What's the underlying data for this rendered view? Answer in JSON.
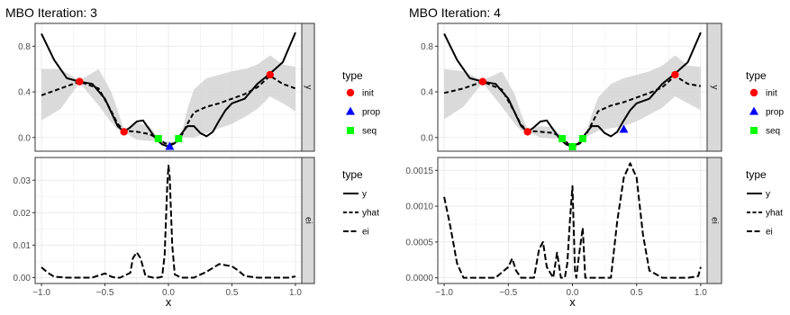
{
  "colors": {
    "panel_bg": "#ffffff",
    "grid": "#ebebeb",
    "strip_bg": "#d9d9d9",
    "ribbon": "#d3d3d3",
    "line": "#000000",
    "init": "#ff0000",
    "prop": "#0000ff",
    "seq": "#00ff00",
    "text": "#000000",
    "tick_text": "#4d4d4d"
  },
  "chart_data": [
    {
      "type": "line",
      "title": "MBO Iteration: 3",
      "xlabel": "x",
      "xlim": [
        -1.05,
        1.05
      ],
      "x_ticks": [
        -1.0,
        -0.5,
        0.0,
        0.5,
        1.0
      ],
      "x_tick_labels": [
        "−1.0",
        "−0.5",
        "0.0",
        "0.5",
        "1.0"
      ],
      "grid": true,
      "legend_position": "right",
      "facets": [
        {
          "strip_label": "y",
          "ylim": [
            -0.12,
            1.0
          ],
          "y_ticks": [
            0.0,
            0.4,
            0.8
          ],
          "y_tick_labels": [
            "0.0",
            "0.4",
            "0.8"
          ],
          "series": [
            {
              "name": "y",
              "style": "solid",
              "x": [
                -1.0,
                -0.9,
                -0.8,
                -0.7,
                -0.6,
                -0.5,
                -0.4,
                -0.35,
                -0.3,
                -0.25,
                -0.2,
                -0.15,
                -0.1,
                -0.05,
                0.0,
                0.05,
                0.1,
                0.15,
                0.2,
                0.25,
                0.3,
                0.35,
                0.4,
                0.45,
                0.5,
                0.6,
                0.7,
                0.8,
                0.9,
                1.0
              ],
              "y": [
                0.91,
                0.68,
                0.52,
                0.49,
                0.47,
                0.34,
                0.1,
                0.05,
                0.09,
                0.14,
                0.15,
                0.07,
                -0.01,
                -0.06,
                -0.08,
                -0.05,
                0.03,
                0.1,
                0.1,
                0.04,
                0.01,
                0.05,
                0.15,
                0.24,
                0.3,
                0.34,
                0.47,
                0.56,
                0.66,
                0.92
              ]
            },
            {
              "name": "yhat",
              "style": "dashed",
              "x": [
                -1.0,
                -0.85,
                -0.7,
                -0.55,
                -0.45,
                -0.4,
                -0.35,
                -0.25,
                -0.15,
                -0.08,
                -0.03,
                0.02,
                0.06,
                0.1,
                0.15,
                0.2,
                0.3,
                0.4,
                0.5,
                0.6,
                0.7,
                0.8,
                0.9,
                1.0
              ],
              "y": [
                0.37,
                0.43,
                0.49,
                0.43,
                0.23,
                0.12,
                0.06,
                0.05,
                0.03,
                -0.01,
                -0.05,
                -0.06,
                -0.04,
                0.01,
                0.12,
                0.22,
                0.27,
                0.3,
                0.34,
                0.38,
                0.44,
                0.54,
                0.47,
                0.43
              ]
            },
            {
              "name": "ribbon",
              "style": "band",
              "x": [
                -1.0,
                -0.85,
                -0.7,
                -0.55,
                -0.45,
                -0.4,
                -0.35,
                -0.25,
                -0.15,
                -0.08,
                -0.03,
                0.02,
                0.06,
                0.1,
                0.15,
                0.2,
                0.3,
                0.4,
                0.5,
                0.6,
                0.7,
                0.8,
                0.9,
                1.0
              ],
              "lower": [
                0.15,
                0.25,
                0.48,
                0.28,
                0.13,
                0.07,
                0.05,
                -0.02,
                -0.03,
                -0.02,
                -0.07,
                -0.08,
                -0.05,
                0.0,
                0.0,
                0.0,
                0.04,
                0.08,
                0.12,
                0.18,
                0.25,
                0.36,
                0.3,
                0.23
              ],
              "upper": [
                0.6,
                0.6,
                0.5,
                0.6,
                0.4,
                0.24,
                0.07,
                0.13,
                0.1,
                0.0,
                -0.03,
                -0.04,
                -0.03,
                0.02,
                0.25,
                0.42,
                0.52,
                0.55,
                0.58,
                0.6,
                0.64,
                0.72,
                0.64,
                0.62
              ]
            }
          ],
          "points": [
            {
              "type": "init",
              "shape": "circle",
              "x": -0.7,
              "y": 0.49
            },
            {
              "type": "init",
              "shape": "circle",
              "x": -0.35,
              "y": 0.05
            },
            {
              "type": "init",
              "shape": "circle",
              "x": 0.8,
              "y": 0.55
            },
            {
              "type": "seq",
              "shape": "square",
              "x": -0.08,
              "y": -0.01
            },
            {
              "type": "seq",
              "shape": "square",
              "x": 0.08,
              "y": -0.01
            },
            {
              "type": "prop",
              "shape": "triangle",
              "x": 0.01,
              "y": -0.08
            }
          ]
        },
        {
          "strip_label": "ei",
          "ylim": [
            -0.0018,
            0.037
          ],
          "y_ticks": [
            0.0,
            0.01,
            0.02,
            0.03
          ],
          "y_tick_labels": [
            "0.00",
            "0.01",
            "0.02",
            "0.03"
          ],
          "series": [
            {
              "name": "ei",
              "style": "longdash",
              "x": [
                -1.0,
                -0.95,
                -0.9,
                -0.8,
                -0.6,
                -0.5,
                -0.45,
                -0.42,
                -0.38,
                -0.3,
                -0.28,
                -0.25,
                -0.22,
                -0.18,
                -0.12,
                -0.08,
                -0.05,
                -0.03,
                -0.01,
                0.0,
                0.01,
                0.03,
                0.05,
                0.1,
                0.2,
                0.3,
                0.4,
                0.5,
                0.55,
                0.6,
                0.7,
                0.8,
                0.9,
                0.95,
                1.0
              ],
              "y": [
                0.0032,
                0.0015,
                0.0003,
                0.0,
                0.0,
                0.0013,
                0.0003,
                0.0,
                0.0,
                0.0015,
                0.006,
                0.0078,
                0.006,
                0.0005,
                0.0,
                0.0,
                0.0003,
                0.007,
                0.028,
                0.0345,
                0.031,
                0.01,
                0.001,
                0.0,
                0.0,
                0.0018,
                0.0042,
                0.0035,
                0.0022,
                0.0005,
                0.0,
                0.0,
                0.0,
                0.0,
                0.0004
              ]
            }
          ]
        }
      ]
    },
    {
      "type": "line",
      "title": "MBO Iteration: 4",
      "xlabel": "x",
      "xlim": [
        -1.05,
        1.05
      ],
      "x_ticks": [
        -1.0,
        -0.5,
        0.0,
        0.5,
        1.0
      ],
      "x_tick_labels": [
        "−1.0",
        "−0.5",
        "0.0",
        "0.5",
        "1.0"
      ],
      "grid": true,
      "legend_position": "right",
      "facets": [
        {
          "strip_label": "y",
          "ylim": [
            -0.12,
            1.0
          ],
          "y_ticks": [
            0.0,
            0.4,
            0.8
          ],
          "y_tick_labels": [
            "0.0",
            "0.4",
            "0.8"
          ],
          "series": [
            {
              "name": "y",
              "style": "solid",
              "x": [
                -1.0,
                -0.9,
                -0.8,
                -0.7,
                -0.6,
                -0.5,
                -0.4,
                -0.35,
                -0.3,
                -0.25,
                -0.2,
                -0.15,
                -0.1,
                -0.05,
                0.0,
                0.05,
                0.1,
                0.15,
                0.2,
                0.25,
                0.3,
                0.35,
                0.4,
                0.45,
                0.5,
                0.6,
                0.7,
                0.8,
                0.9,
                1.0
              ],
              "y": [
                0.91,
                0.68,
                0.52,
                0.49,
                0.47,
                0.34,
                0.1,
                0.05,
                0.09,
                0.14,
                0.15,
                0.07,
                -0.01,
                -0.06,
                -0.08,
                -0.05,
                0.03,
                0.1,
                0.1,
                0.04,
                0.01,
                0.05,
                0.15,
                0.24,
                0.3,
                0.34,
                0.47,
                0.56,
                0.66,
                0.92
              ]
            },
            {
              "name": "yhat",
              "style": "dashed",
              "x": [
                -1.0,
                -0.85,
                -0.7,
                -0.55,
                -0.45,
                -0.4,
                -0.35,
                -0.25,
                -0.15,
                -0.08,
                -0.03,
                0.02,
                0.06,
                0.1,
                0.15,
                0.2,
                0.3,
                0.4,
                0.5,
                0.6,
                0.7,
                0.8,
                0.9,
                1.0
              ],
              "y": [
                0.39,
                0.43,
                0.49,
                0.42,
                0.22,
                0.11,
                0.06,
                0.05,
                0.04,
                0.0,
                -0.06,
                -0.08,
                -0.05,
                0.01,
                0.12,
                0.23,
                0.28,
                0.31,
                0.35,
                0.39,
                0.44,
                0.54,
                0.47,
                0.45
              ]
            },
            {
              "name": "ribbon",
              "style": "band",
              "x": [
                -1.0,
                -0.85,
                -0.7,
                -0.55,
                -0.45,
                -0.4,
                -0.35,
                -0.25,
                -0.15,
                -0.08,
                -0.03,
                0.02,
                0.06,
                0.1,
                0.15,
                0.2,
                0.3,
                0.4,
                0.5,
                0.6,
                0.7,
                0.8,
                0.9,
                1.0
              ],
              "lower": [
                0.16,
                0.27,
                0.48,
                0.27,
                0.12,
                0.06,
                0.05,
                0.0,
                -0.01,
                -0.01,
                -0.07,
                -0.09,
                -0.06,
                0.0,
                0.03,
                0.06,
                0.08,
                0.1,
                0.14,
                0.2,
                0.26,
                0.36,
                0.3,
                0.24
              ],
              "upper": [
                0.6,
                0.58,
                0.5,
                0.58,
                0.38,
                0.21,
                0.07,
                0.1,
                0.09,
                0.01,
                -0.05,
                -0.06,
                -0.04,
                0.02,
                0.2,
                0.35,
                0.47,
                0.52,
                0.55,
                0.58,
                0.63,
                0.72,
                0.63,
                0.62
              ]
            }
          ],
          "points": [
            {
              "type": "init",
              "shape": "circle",
              "x": -0.7,
              "y": 0.49
            },
            {
              "type": "init",
              "shape": "circle",
              "x": -0.35,
              "y": 0.05
            },
            {
              "type": "init",
              "shape": "circle",
              "x": 0.8,
              "y": 0.55
            },
            {
              "type": "seq",
              "shape": "square",
              "x": -0.08,
              "y": -0.01
            },
            {
              "type": "seq",
              "shape": "square",
              "x": 0.08,
              "y": -0.01
            },
            {
              "type": "seq",
              "shape": "square",
              "x": 0.0,
              "y": -0.08
            },
            {
              "type": "prop",
              "shape": "triangle",
              "x": 0.4,
              "y": 0.07
            }
          ]
        },
        {
          "strip_label": "ei",
          "ylim": [
            -8e-05,
            0.00168
          ],
          "y_ticks": [
            0.0,
            0.0005,
            0.001,
            0.0015
          ],
          "y_tick_labels": [
            "0.0000",
            "0.0005",
            "0.0010",
            "0.0015"
          ],
          "series": [
            {
              "name": "ei",
              "style": "longdash",
              "x": [
                -1.0,
                -0.95,
                -0.9,
                -0.85,
                -0.8,
                -0.6,
                -0.5,
                -0.47,
                -0.44,
                -0.4,
                -0.3,
                -0.26,
                -0.23,
                -0.2,
                -0.15,
                -0.12,
                -0.09,
                -0.06,
                -0.04,
                -0.02,
                0.0,
                0.01,
                0.02,
                0.03,
                0.05,
                0.08,
                0.1,
                0.2,
                0.3,
                0.35,
                0.4,
                0.45,
                0.5,
                0.55,
                0.6,
                0.7,
                0.9,
                0.98,
                1.0
              ],
              "y": [
                0.00113,
                0.0007,
                0.0002,
                0.0,
                0.0,
                0.0,
                0.00015,
                0.00027,
                0.0001,
                0.0,
                0.0,
                0.0004,
                0.0005,
                0.00015,
                0.0,
                0.00035,
                0.0,
                0.0,
                0.0002,
                0.0008,
                0.00128,
                0.0007,
                0.0001,
                0.0,
                0.0003,
                0.0007,
                0.0,
                0.0,
                0.0,
                0.0008,
                0.0014,
                0.0016,
                0.0014,
                0.0006,
                0.0001,
                0.0,
                0.0,
                2e-05,
                0.00015
              ]
            }
          ]
        }
      ]
    }
  ],
  "legends": [
    {
      "title": "type",
      "items": [
        {
          "label": "init",
          "shape": "circle",
          "color_key": "init"
        },
        {
          "label": "prop",
          "shape": "triangle",
          "color_key": "prop"
        },
        {
          "label": "seq",
          "shape": "square",
          "color_key": "seq"
        }
      ]
    },
    {
      "title": "type",
      "items": [
        {
          "label": "y",
          "style": "solid"
        },
        {
          "label": "yhat",
          "style": "dashed"
        },
        {
          "label": "ei",
          "style": "longdash"
        }
      ]
    }
  ]
}
